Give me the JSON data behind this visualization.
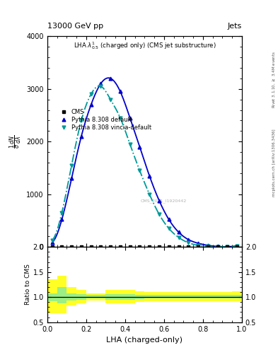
{
  "title_top": "13000 GeV pp",
  "title_right": "Jets",
  "plot_title": "LHA $\\lambda^{1}_{0.5}$ (charged only) (CMS jet substructure)",
  "xlabel": "LHA (charged-only)",
  "ylabel_main": "$\\frac{1}{\\sigma} \\frac{d^{2}N}{dp_{T}\\,d\\lambda}$",
  "ylabel_ratio": "Ratio to CMS",
  "right_label_top": "Rivet 3.1.10, $\\geq$ 3.4M events",
  "right_label_bottom": "mcplots.cern.ch [arXiv:1306.3436]",
  "watermark": "CMS_2021_I1920442",
  "pythia_default_x": [
    0.025,
    0.075,
    0.125,
    0.175,
    0.225,
    0.275,
    0.325,
    0.375,
    0.425,
    0.475,
    0.525,
    0.575,
    0.625,
    0.675,
    0.725,
    0.775,
    0.825,
    0.875,
    0.925,
    0.975
  ],
  "pythia_default_y": [
    0.08,
    0.52,
    1.3,
    2.1,
    2.7,
    3.1,
    3.2,
    2.95,
    2.45,
    1.9,
    1.35,
    0.88,
    0.52,
    0.28,
    0.14,
    0.07,
    0.03,
    0.01,
    0.005,
    0.02
  ],
  "pythia_vincia_x": [
    0.025,
    0.075,
    0.125,
    0.175,
    0.225,
    0.275,
    0.325,
    0.375,
    0.425,
    0.475,
    0.525,
    0.575,
    0.625,
    0.675,
    0.725,
    0.775,
    0.825,
    0.875,
    0.925,
    0.975
  ],
  "pythia_vincia_y": [
    0.12,
    0.65,
    1.55,
    2.4,
    2.9,
    3.05,
    2.8,
    2.45,
    1.95,
    1.45,
    1.0,
    0.62,
    0.35,
    0.18,
    0.08,
    0.03,
    0.01,
    0.005,
    0.002,
    0.015
  ],
  "cms_x": [
    0.025,
    0.075,
    0.125,
    0.175,
    0.225,
    0.275,
    0.325,
    0.375,
    0.425,
    0.475,
    0.525,
    0.575,
    0.625,
    0.675,
    0.725,
    0.775,
    0.825,
    0.875,
    0.925,
    0.975
  ],
  "cms_y": [
    0.0,
    0.0,
    0.0,
    0.0,
    0.0,
    0.0,
    0.0,
    0.0,
    0.0,
    0.0,
    0.0,
    0.0,
    0.0,
    0.0,
    0.0,
    0.0,
    0.0,
    0.0,
    0.0,
    0.0
  ],
  "ylim_main": [
    0,
    4.0
  ],
  "ylim_ratio": [
    0.5,
    2.0
  ],
  "yticks_main_labels": [
    "0",
    "1000",
    "2000",
    "3000",
    "4000"
  ],
  "yticks_main_vals": [
    0,
    1.0,
    2.0,
    3.0,
    4.0
  ],
  "yticks_ratio": [
    0.5,
    1.0,
    1.5,
    2.0
  ],
  "xlim": [
    0,
    1.0
  ],
  "color_pythia_default": "#0000cc",
  "color_pythia_vincia": "#009999",
  "color_cms": "#000000",
  "ratio_bins_x": [
    0.0,
    0.05,
    0.1,
    0.15,
    0.2,
    0.25,
    0.3,
    0.35,
    0.4,
    0.45,
    0.5,
    0.55,
    0.6,
    0.65,
    0.7,
    0.75,
    0.8,
    0.85,
    0.9,
    0.95,
    1.0
  ],
  "ratio_green_lo": [
    0.92,
    0.87,
    0.93,
    0.95,
    0.97,
    0.97,
    0.95,
    0.95,
    0.95,
    0.96,
    0.97,
    0.97,
    0.97,
    0.97,
    0.97,
    0.97,
    0.97,
    0.97,
    0.97,
    0.97
  ],
  "ratio_green_hi": [
    1.08,
    1.2,
    1.08,
    1.06,
    1.04,
    1.04,
    1.06,
    1.06,
    1.06,
    1.05,
    1.04,
    1.04,
    1.04,
    1.04,
    1.04,
    1.04,
    1.04,
    1.04,
    1.04,
    1.04
  ],
  "ratio_yellow_lo": [
    0.68,
    0.68,
    0.83,
    0.88,
    0.93,
    0.93,
    0.88,
    0.88,
    0.88,
    0.9,
    0.92,
    0.92,
    0.92,
    0.92,
    0.92,
    0.92,
    0.92,
    0.92,
    0.92,
    0.92
  ],
  "ratio_yellow_hi": [
    1.35,
    1.42,
    1.2,
    1.14,
    1.08,
    1.08,
    1.14,
    1.14,
    1.14,
    1.12,
    1.1,
    1.1,
    1.1,
    1.1,
    1.1,
    1.1,
    1.1,
    1.1,
    1.1,
    1.12
  ]
}
